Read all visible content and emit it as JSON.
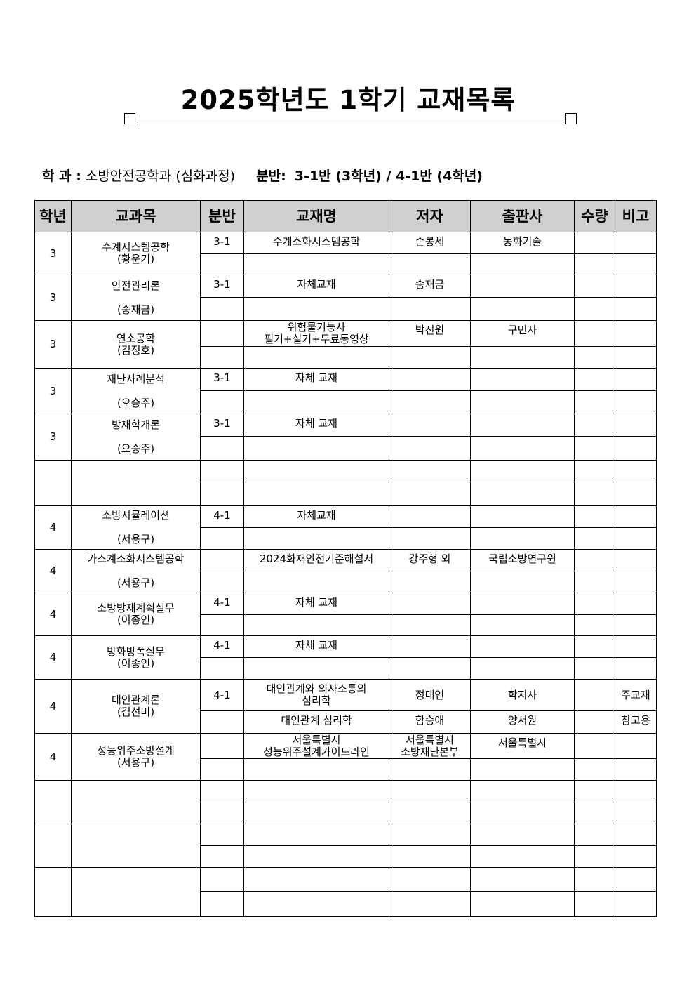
{
  "title": "2025학년도 1학기 교재목록",
  "department": {
    "label": "학 과 :",
    "value": "소방안전공학과 (심화과정)",
    "class_label": "분반:",
    "class_value": "3-1반 (3학년) / 4-1반 (4학년)"
  },
  "headers": [
    "학년",
    "교과목",
    "분반",
    "교재명",
    "저자",
    "출판사",
    "수량",
    "비고"
  ],
  "groups": [
    {
      "grade": "3",
      "course": "수계시스템공학\n(황운기)",
      "rows": [
        {
          "class": "3-1",
          "book": "수계소화시스템공학",
          "author": "손봉세",
          "publisher": "동화기술",
          "qty": "",
          "note": ""
        },
        {
          "class": "",
          "book": "",
          "author": "",
          "publisher": "",
          "qty": "",
          "note": ""
        }
      ]
    },
    {
      "grade": "3",
      "course": "안전관리론\n\n(송재금)",
      "rows": [
        {
          "class": "3-1",
          "book": "자체교재",
          "author": "송재금",
          "publisher": "",
          "qty": "",
          "note": ""
        },
        {
          "class": "",
          "book": "",
          "author": "",
          "publisher": "",
          "qty": "",
          "note": ""
        }
      ]
    },
    {
      "grade": "3",
      "course": "연소공학\n(김정호)",
      "rows": [
        {
          "class": "",
          "book": "위험물기능사\n필기+실기+무료동영상",
          "author": "박진원",
          "publisher": "구민사",
          "qty": "",
          "note": ""
        },
        {
          "class": "",
          "book": "",
          "author": "",
          "publisher": "",
          "qty": "",
          "note": ""
        }
      ]
    },
    {
      "grade": "3",
      "course": "재난사례분석\n\n(오승주)",
      "rows": [
        {
          "class": "3-1",
          "book": "자체 교재",
          "author": "",
          "publisher": "",
          "qty": "",
          "note": ""
        },
        {
          "class": "",
          "book": "",
          "author": "",
          "publisher": "",
          "qty": "",
          "note": ""
        }
      ]
    },
    {
      "grade": "3",
      "course": "방재학개론\n\n(오승주)",
      "rows": [
        {
          "class": "3-1",
          "book": "자체 교재",
          "author": "",
          "publisher": "",
          "qty": "",
          "note": ""
        },
        {
          "class": "",
          "book": "",
          "author": "",
          "publisher": "",
          "qty": "",
          "note": ""
        }
      ]
    },
    {
      "grade": "",
      "course": "",
      "rows": [
        {
          "class": "",
          "book": "",
          "author": "",
          "publisher": "",
          "qty": "",
          "note": ""
        },
        {
          "class": "",
          "book": "",
          "author": "",
          "publisher": "",
          "qty": "",
          "note": ""
        }
      ]
    },
    {
      "grade": "4",
      "course": "소방시뮬레이션\n\n(서용구)",
      "rows": [
        {
          "class": "4-1",
          "book": "자체교재",
          "author": "",
          "publisher": "",
          "qty": "",
          "note": ""
        },
        {
          "class": "",
          "book": "",
          "author": "",
          "publisher": "",
          "qty": "",
          "note": ""
        }
      ]
    },
    {
      "grade": "4",
      "course": "가스계소화시스템공학\n\n(서용구)",
      "rows": [
        {
          "class": "",
          "book": "2024화재안전기준해설서",
          "author": "강주형 외",
          "publisher": "국립소방연구원",
          "qty": "",
          "note": ""
        },
        {
          "class": "",
          "book": "",
          "author": "",
          "publisher": "",
          "qty": "",
          "note": ""
        }
      ]
    },
    {
      "grade": "4",
      "course": "소방방재계획실무\n(이종인)",
      "rows": [
        {
          "class": "4-1",
          "book": "자체 교재",
          "author": "",
          "publisher": "",
          "qty": "",
          "note": ""
        },
        {
          "class": "",
          "book": "",
          "author": "",
          "publisher": "",
          "qty": "",
          "note": ""
        }
      ]
    },
    {
      "grade": "4",
      "course": "방화방폭실무\n(이종인)",
      "rows": [
        {
          "class": "4-1",
          "book": "자체 교재",
          "author": "",
          "publisher": "",
          "qty": "",
          "note": ""
        },
        {
          "class": "",
          "book": "",
          "author": "",
          "publisher": "",
          "qty": "",
          "note": ""
        }
      ]
    },
    {
      "grade": "4",
      "course": "대인관계론\n(김선미)",
      "rows": [
        {
          "class": "4-1",
          "book": "대인관계와 의사소통의\n심리학",
          "author": "정태연",
          "publisher": "학지사",
          "qty": "",
          "note": "주교재"
        },
        {
          "class": "",
          "book": "대인관계 심리학",
          "author": "함승애",
          "publisher": "양서원",
          "qty": "",
          "note": "참고용"
        }
      ]
    },
    {
      "grade": "4",
      "course": "성능위주소방설계\n(서용구)",
      "rows": [
        {
          "class": "",
          "book": "서울특별시\n성능위주설계가이드라인",
          "author": "서울특별시\n소방재난본부",
          "publisher": "서울특별시",
          "qty": "",
          "note": ""
        },
        {
          "class": "",
          "book": "",
          "author": "",
          "publisher": "",
          "qty": "",
          "note": ""
        }
      ]
    },
    {
      "grade": "",
      "course": "",
      "rows": [
        {
          "class": "",
          "book": "",
          "author": "",
          "publisher": "",
          "qty": "",
          "note": ""
        },
        {
          "class": "",
          "book": "",
          "author": "",
          "publisher": "",
          "qty": "",
          "note": ""
        }
      ]
    },
    {
      "grade": "",
      "course": "",
      "rows": [
        {
          "class": "",
          "book": "",
          "author": "",
          "publisher": "",
          "qty": "",
          "note": ""
        },
        {
          "class": "",
          "book": "",
          "author": "",
          "publisher": "",
          "qty": "",
          "note": ""
        }
      ]
    },
    {
      "grade": "",
      "course": "",
      "rows": [
        {
          "class": "",
          "book": "",
          "author": "",
          "publisher": "",
          "qty": "",
          "note": ""
        },
        {
          "class": "",
          "book": "",
          "author": "",
          "publisher": "",
          "qty": "",
          "note": ""
        }
      ]
    }
  ]
}
